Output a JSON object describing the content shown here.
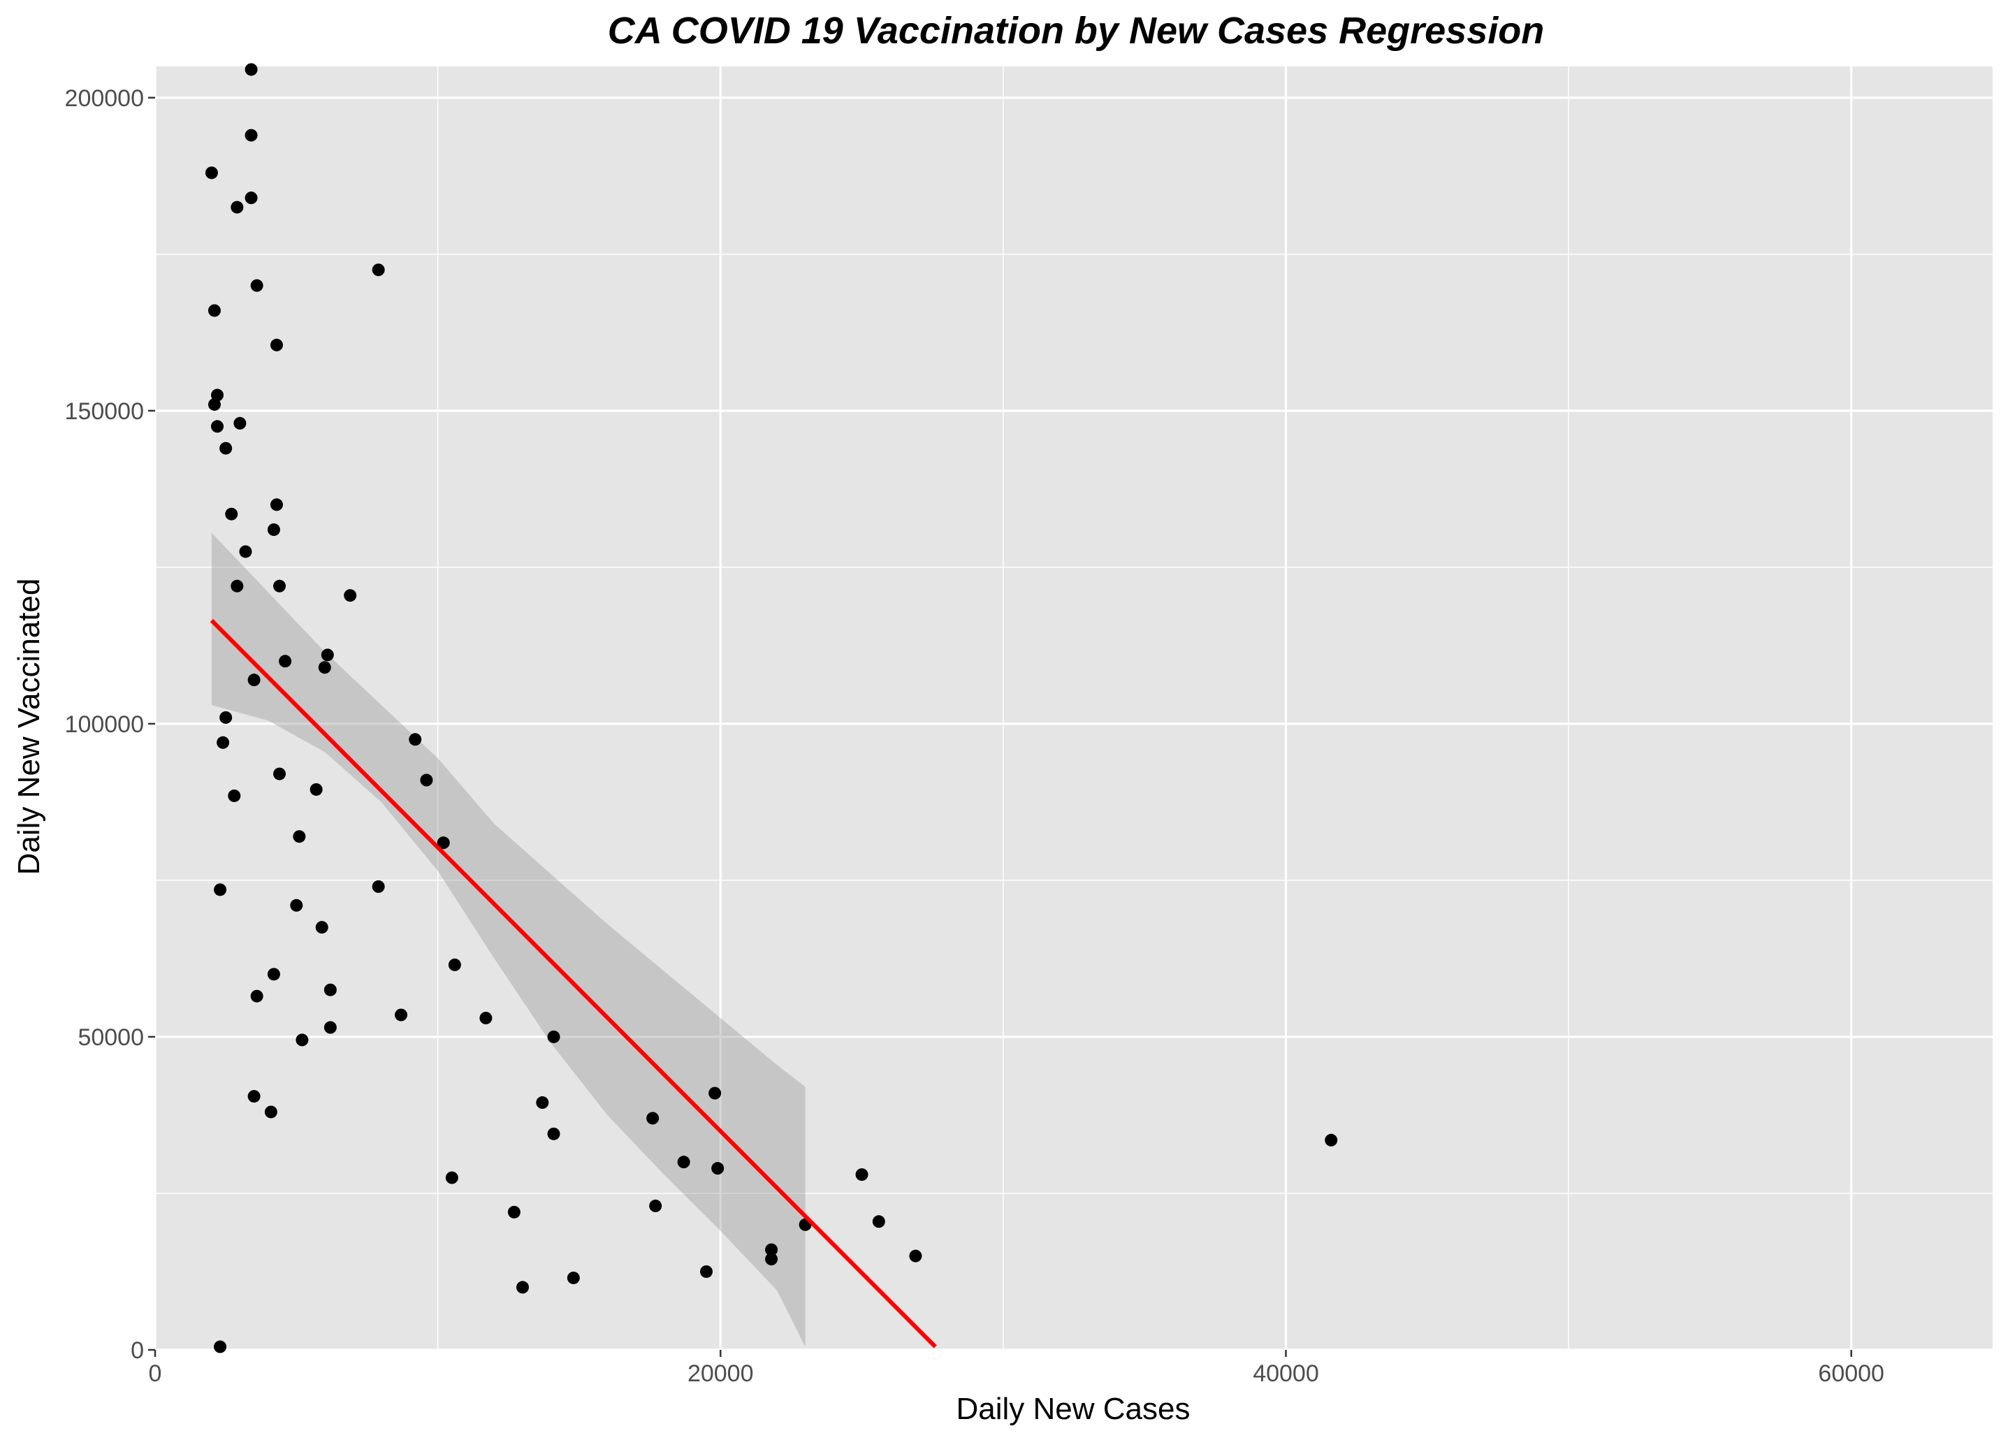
{
  "chart_data": {
    "type": "scatter",
    "title": "CA COVID 19 Vaccination by New Cases Regression",
    "xlabel": "Daily New Cases",
    "ylabel": "Daily New Vaccinated",
    "xlim": [
      0,
      65000
    ],
    "ylim": [
      0,
      205000
    ],
    "x_ticks": [
      0,
      20000,
      40000,
      60000
    ],
    "x_tick_labels": [
      "0",
      "20000",
      "40000",
      "60000"
    ],
    "x_minor_ticks": [
      10000,
      30000,
      50000
    ],
    "y_ticks": [
      0,
      50000,
      100000,
      150000,
      200000
    ],
    "y_tick_labels": [
      "0",
      "50000",
      "100000",
      "150000",
      "200000"
    ],
    "y_minor_ticks": [
      25000,
      75000,
      125000,
      175000
    ],
    "grid": true,
    "legend": "none",
    "colors": {
      "panel_background": "#e5e5e5",
      "grid": "#ffffff",
      "points": "#000000",
      "regression_line": "#ff0000",
      "confidence_band": "#999999"
    },
    "points": [
      {
        "x": 2000,
        "y": 188000
      },
      {
        "x": 3400,
        "y": 204500
      },
      {
        "x": 3400,
        "y": 194000
      },
      {
        "x": 3400,
        "y": 184000
      },
      {
        "x": 2900,
        "y": 182500
      },
      {
        "x": 3600,
        "y": 170000
      },
      {
        "x": 7900,
        "y": 172500
      },
      {
        "x": 2100,
        "y": 166000
      },
      {
        "x": 4300,
        "y": 160500
      },
      {
        "x": 2200,
        "y": 152500
      },
      {
        "x": 2100,
        "y": 151000
      },
      {
        "x": 3000,
        "y": 148000
      },
      {
        "x": 2200,
        "y": 147500
      },
      {
        "x": 2500,
        "y": 144000
      },
      {
        "x": 4300,
        "y": 135000
      },
      {
        "x": 2700,
        "y": 133500
      },
      {
        "x": 4200,
        "y": 131000
      },
      {
        "x": 3200,
        "y": 127500
      },
      {
        "x": 2900,
        "y": 122000
      },
      {
        "x": 4400,
        "y": 122000
      },
      {
        "x": 6900,
        "y": 120500
      },
      {
        "x": 6100,
        "y": 111000
      },
      {
        "x": 4600,
        "y": 110000
      },
      {
        "x": 6000,
        "y": 109000
      },
      {
        "x": 3500,
        "y": 107000
      },
      {
        "x": 2500,
        "y": 101000
      },
      {
        "x": 9200,
        "y": 97500
      },
      {
        "x": 2400,
        "y": 97000
      },
      {
        "x": 4400,
        "y": 92000
      },
      {
        "x": 9600,
        "y": 91000
      },
      {
        "x": 5700,
        "y": 89500
      },
      {
        "x": 2800,
        "y": 88500
      },
      {
        "x": 5100,
        "y": 82000
      },
      {
        "x": 10200,
        "y": 81000
      },
      {
        "x": 7900,
        "y": 74000
      },
      {
        "x": 2300,
        "y": 73500
      },
      {
        "x": 5000,
        "y": 71000
      },
      {
        "x": 5900,
        "y": 67500
      },
      {
        "x": 10600,
        "y": 61500
      },
      {
        "x": 4200,
        "y": 60000
      },
      {
        "x": 6200,
        "y": 57500
      },
      {
        "x": 3600,
        "y": 56500
      },
      {
        "x": 8700,
        "y": 53500
      },
      {
        "x": 11700,
        "y": 53000
      },
      {
        "x": 6200,
        "y": 51500
      },
      {
        "x": 5200,
        "y": 49500
      },
      {
        "x": 14100,
        "y": 50000
      },
      {
        "x": 19800,
        "y": 41000
      },
      {
        "x": 3500,
        "y": 40500
      },
      {
        "x": 13700,
        "y": 39500
      },
      {
        "x": 4100,
        "y": 38000
      },
      {
        "x": 17600,
        "y": 37000
      },
      {
        "x": 14100,
        "y": 34500
      },
      {
        "x": 41600,
        "y": 33500
      },
      {
        "x": 18700,
        "y": 30000
      },
      {
        "x": 19900,
        "y": 29000
      },
      {
        "x": 25000,
        "y": 28000
      },
      {
        "x": 10500,
        "y": 27500
      },
      {
        "x": 17700,
        "y": 23000
      },
      {
        "x": 12700,
        "y": 22000
      },
      {
        "x": 25600,
        "y": 20500
      },
      {
        "x": 23000,
        "y": 20000
      },
      {
        "x": 21800,
        "y": 16000
      },
      {
        "x": 26900,
        "y": 15000
      },
      {
        "x": 21800,
        "y": 14500
      },
      {
        "x": 19500,
        "y": 12500
      },
      {
        "x": 14800,
        "y": 11500
      },
      {
        "x": 13000,
        "y": 10000
      },
      {
        "x": 2300,
        "y": 500
      }
    ],
    "regression": {
      "start": {
        "x": 2000,
        "y": 116500
      },
      "end": {
        "x": 27600,
        "y": 500
      },
      "ci_lower": [
        {
          "x": 2000,
          "y": 103000
        },
        {
          "x": 4000,
          "y": 100500
        },
        {
          "x": 6000,
          "y": 95500
        },
        {
          "x": 8000,
          "y": 87500
        },
        {
          "x": 10000,
          "y": 76500
        },
        {
          "x": 12000,
          "y": 62500
        },
        {
          "x": 14000,
          "y": 49000
        },
        {
          "x": 16000,
          "y": 37500
        },
        {
          "x": 18000,
          "y": 28000
        },
        {
          "x": 20000,
          "y": 19000
        },
        {
          "x": 22000,
          "y": 9500
        },
        {
          "x": 23000,
          "y": 500
        }
      ],
      "ci_upper": [
        {
          "x": 23000,
          "y": 42000
        },
        {
          "x": 22000,
          "y": 45500
        },
        {
          "x": 20000,
          "y": 53000
        },
        {
          "x": 18000,
          "y": 60500
        },
        {
          "x": 16000,
          "y": 68000
        },
        {
          "x": 14000,
          "y": 76000
        },
        {
          "x": 12000,
          "y": 84000
        },
        {
          "x": 10000,
          "y": 94500
        },
        {
          "x": 8000,
          "y": 103000
        },
        {
          "x": 6000,
          "y": 111500
        },
        {
          "x": 4000,
          "y": 121000
        },
        {
          "x": 2000,
          "y": 130500
        }
      ]
    }
  }
}
